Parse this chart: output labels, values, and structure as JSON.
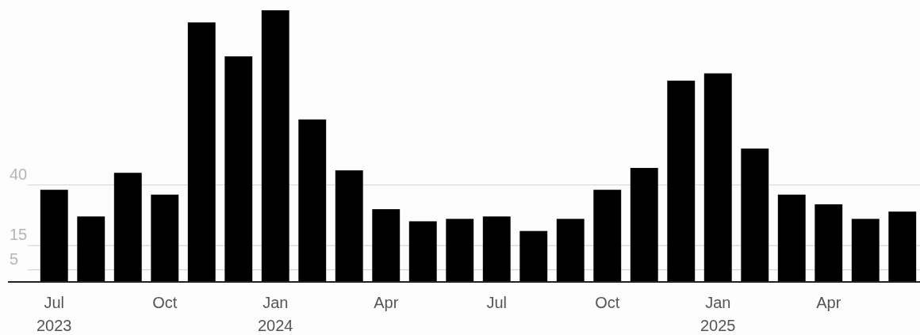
{
  "chart_data": {
    "type": "bar",
    "categories": [
      "Jul 2023",
      null,
      null,
      "Oct",
      null,
      null,
      "Jan 2024",
      null,
      null,
      "Apr",
      null,
      null,
      "Jul",
      null,
      null,
      "Oct",
      null,
      null,
      "Jan 2025",
      null,
      null,
      "Apr",
      null,
      null
    ],
    "values": [
      38,
      27,
      45,
      36,
      107,
      93,
      112,
      67,
      46,
      30,
      25,
      26,
      27,
      21,
      26,
      38,
      47,
      83,
      86,
      55,
      36,
      32,
      26,
      29
    ],
    "color": "#000000",
    "ylim": [
      0,
      112
    ],
    "yticks": [
      5,
      15,
      40
    ],
    "grid": "y"
  }
}
